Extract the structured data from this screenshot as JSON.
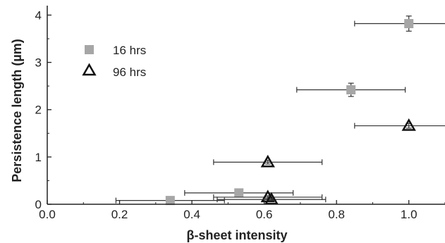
{
  "chart_data": {
    "type": "scatter",
    "xlabel": "β-sheet intensity",
    "ylabel": "Persistence length (µm)",
    "xlim": [
      0.0,
      1.1
    ],
    "ylim": [
      0,
      4.2
    ],
    "xticks": [
      "0.0",
      "0.2",
      "0.4",
      "0.6",
      "0.8",
      "1.0"
    ],
    "yticks": [
      "0",
      "1",
      "2",
      "3",
      "4"
    ],
    "grid": false,
    "legend_position": "upper-left",
    "series": [
      {
        "name": "16 hrs",
        "marker": "filled-square",
        "color": "#a6a6a6",
        "points": [
          {
            "x": 0.34,
            "y": 0.08,
            "xerr": 0.15,
            "yerr": 0.02
          },
          {
            "x": 0.53,
            "y": 0.24,
            "xerr": 0.15,
            "yerr": 0.03
          },
          {
            "x": 0.84,
            "y": 2.42,
            "xerr": 0.15,
            "yerr": 0.14
          },
          {
            "x": 1.0,
            "y": 3.82,
            "xerr": 0.15,
            "yerr": 0.16
          }
        ]
      },
      {
        "name": "96 hrs",
        "marker": "open-triangle",
        "color": "#111111",
        "points": [
          {
            "x": 0.61,
            "y": 0.15,
            "xerr": 0.15,
            "yerr": 0.03
          },
          {
            "x": 0.62,
            "y": 0.1,
            "xerr": 0.15,
            "yerr": 0.02
          },
          {
            "x": 0.61,
            "y": 0.89,
            "xerr": 0.15,
            "yerr": 0.04
          },
          {
            "x": 1.0,
            "y": 1.66,
            "xerr": 0.15,
            "yerr": 0.05
          }
        ]
      }
    ]
  }
}
